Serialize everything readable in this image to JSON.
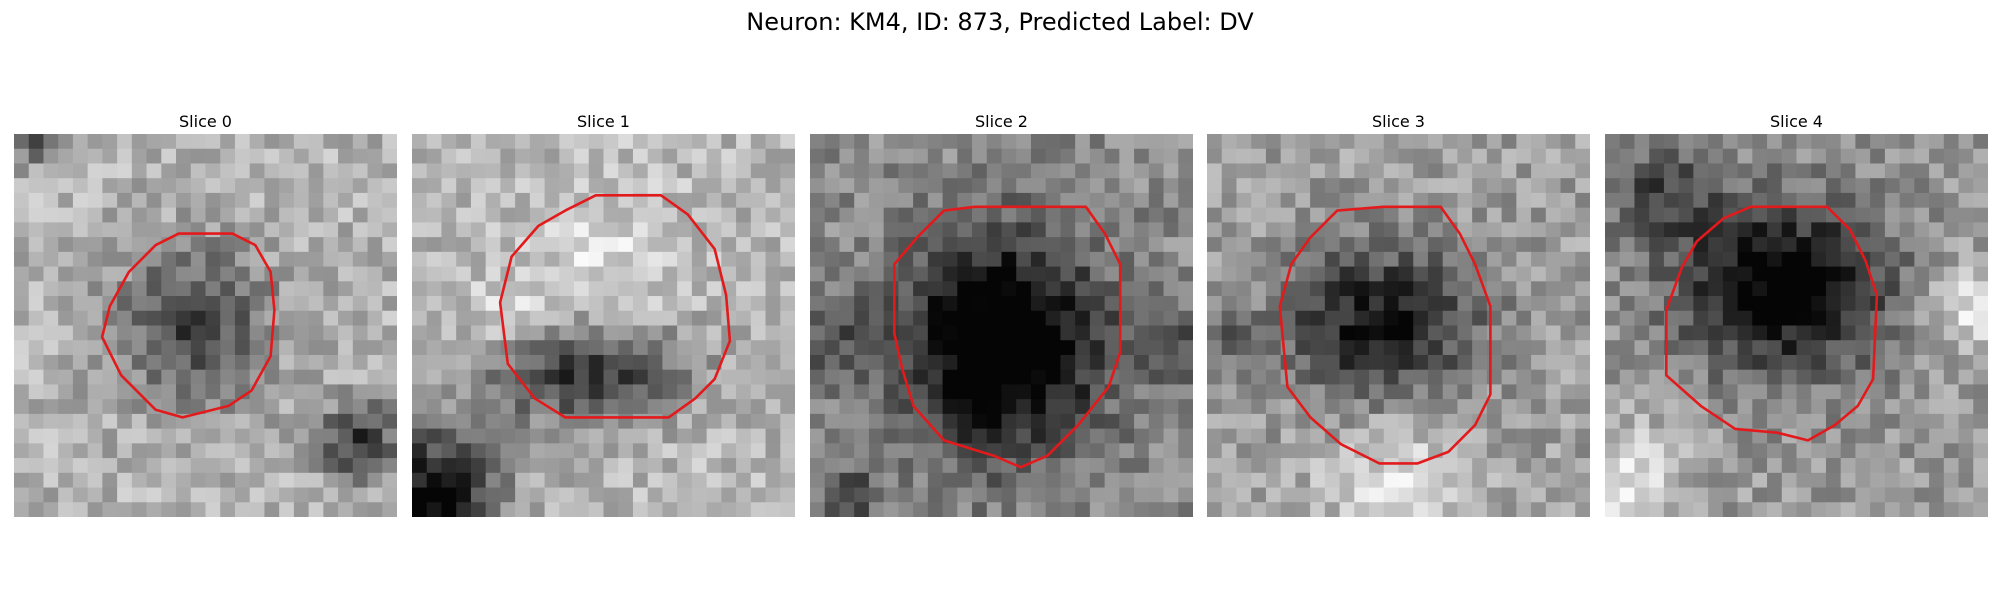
{
  "figure": {
    "title": "Neuron: KM4, ID: 873, Predicted Label: DV"
  },
  "panels": [
    {
      "title": "Slice 0",
      "contour_color": "#e31a1c",
      "dark_region": "center-left, small",
      "polygon": [
        [
          0.25,
          0.45
        ],
        [
          0.3,
          0.36
        ],
        [
          0.37,
          0.29
        ],
        [
          0.43,
          0.26
        ],
        [
          0.57,
          0.26
        ],
        [
          0.63,
          0.29
        ],
        [
          0.67,
          0.36
        ],
        [
          0.68,
          0.46
        ],
        [
          0.67,
          0.58
        ],
        [
          0.62,
          0.67
        ],
        [
          0.56,
          0.71
        ],
        [
          0.44,
          0.74
        ],
        [
          0.37,
          0.72
        ],
        [
          0.28,
          0.63
        ],
        [
          0.23,
          0.53
        ]
      ]
    },
    {
      "title": "Slice 1",
      "contour_color": "#e31a1c",
      "dark_region": "lower-center",
      "polygon": [
        [
          0.23,
          0.44
        ],
        [
          0.26,
          0.32
        ],
        [
          0.33,
          0.24
        ],
        [
          0.4,
          0.2
        ],
        [
          0.48,
          0.16
        ],
        [
          0.65,
          0.16
        ],
        [
          0.72,
          0.21
        ],
        [
          0.79,
          0.3
        ],
        [
          0.82,
          0.42
        ],
        [
          0.83,
          0.54
        ],
        [
          0.79,
          0.64
        ],
        [
          0.74,
          0.69
        ],
        [
          0.67,
          0.74
        ],
        [
          0.4,
          0.74
        ],
        [
          0.32,
          0.69
        ],
        [
          0.25,
          0.6
        ]
      ]
    },
    {
      "title": "Slice 2",
      "contour_color": "#e31a1c",
      "dark_region": "center, large",
      "polygon": [
        [
          0.22,
          0.34
        ],
        [
          0.28,
          0.27
        ],
        [
          0.35,
          0.2
        ],
        [
          0.43,
          0.19
        ],
        [
          0.72,
          0.19
        ],
        [
          0.77,
          0.26
        ],
        [
          0.81,
          0.34
        ],
        [
          0.81,
          0.57
        ],
        [
          0.78,
          0.66
        ],
        [
          0.7,
          0.76
        ],
        [
          0.62,
          0.84
        ],
        [
          0.55,
          0.87
        ],
        [
          0.48,
          0.84
        ],
        [
          0.35,
          0.8
        ],
        [
          0.27,
          0.71
        ],
        [
          0.24,
          0.61
        ],
        [
          0.22,
          0.52
        ]
      ]
    },
    {
      "title": "Slice 3",
      "contour_color": "#e31a1c",
      "dark_region": "upper-center",
      "polygon": [
        [
          0.22,
          0.34
        ],
        [
          0.27,
          0.27
        ],
        [
          0.34,
          0.2
        ],
        [
          0.46,
          0.19
        ],
        [
          0.61,
          0.19
        ],
        [
          0.66,
          0.26
        ],
        [
          0.7,
          0.34
        ],
        [
          0.74,
          0.45
        ],
        [
          0.74,
          0.68
        ],
        [
          0.7,
          0.76
        ],
        [
          0.63,
          0.83
        ],
        [
          0.55,
          0.86
        ],
        [
          0.45,
          0.86
        ],
        [
          0.35,
          0.81
        ],
        [
          0.27,
          0.74
        ],
        [
          0.21,
          0.66
        ],
        [
          0.19,
          0.45
        ]
      ]
    },
    {
      "title": "Slice 4",
      "contour_color": "#e31a1c",
      "dark_region": "upper-center",
      "polygon": [
        [
          0.16,
          0.46
        ],
        [
          0.2,
          0.35
        ],
        [
          0.24,
          0.28
        ],
        [
          0.31,
          0.22
        ],
        [
          0.38,
          0.19
        ],
        [
          0.58,
          0.19
        ],
        [
          0.64,
          0.25
        ],
        [
          0.68,
          0.33
        ],
        [
          0.71,
          0.42
        ],
        [
          0.7,
          0.64
        ],
        [
          0.66,
          0.71
        ],
        [
          0.6,
          0.76
        ],
        [
          0.53,
          0.8
        ],
        [
          0.45,
          0.78
        ],
        [
          0.34,
          0.77
        ],
        [
          0.25,
          0.71
        ],
        [
          0.16,
          0.63
        ]
      ]
    }
  ]
}
